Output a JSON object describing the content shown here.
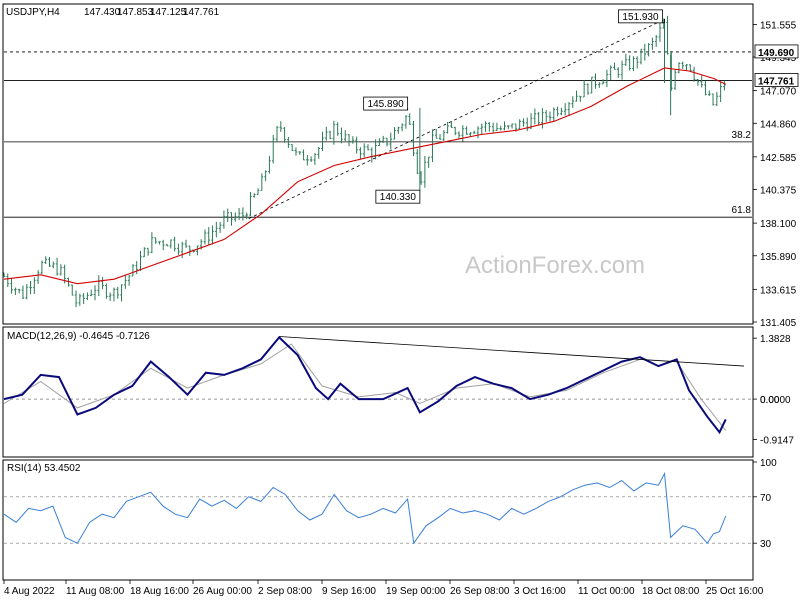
{
  "header": {
    "symbol": "USDJPY,H4",
    "ohlc": [
      "147.430",
      "147.853",
      "147.125",
      "147.761"
    ]
  },
  "watermark": "ActionForex.com",
  "colors": {
    "candle": "#2b7a57",
    "ema": "#d40000",
    "macd": "#0a0a7a",
    "signal": "#a0a0a0",
    "rsi": "#3a7fd6",
    "trend": "#000000"
  },
  "chart_data": [
    {
      "type": "candlestick",
      "panel": "price",
      "title": "USDJPY,H4",
      "ylim": [
        131.405,
        152.8
      ],
      "y_ticks": [
        "151.555",
        "149.345",
        "147.070",
        "144.860",
        "142.585",
        "140.375",
        "138.100",
        "135.890",
        "133.615",
        "131.405"
      ],
      "horizontal_levels": [
        {
          "value": 149.69,
          "style": "dashed",
          "label": "149.690"
        },
        {
          "value": 147.761,
          "style": "solid",
          "label": "147.761"
        },
        {
          "value": 143.6,
          "style": "solid",
          "label": "38.2"
        },
        {
          "value": 138.5,
          "style": "solid",
          "label": "61.8"
        }
      ],
      "annotations": [
        {
          "text": "145.890",
          "x": "14 Sep",
          "y": 145.89
        },
        {
          "text": "140.330",
          "x": "22 Sep",
          "y": 140.33
        },
        {
          "text": "151.930",
          "x": "21 Oct",
          "y": 151.93
        }
      ],
      "close_path": [
        {
          "x": 0,
          "y": 134.5
        },
        {
          "x": 3,
          "y": 133.2
        },
        {
          "x": 6,
          "y": 135.3
        },
        {
          "x": 9,
          "y": 135.0
        },
        {
          "x": 12,
          "y": 132.6
        },
        {
          "x": 15,
          "y": 133.8
        },
        {
          "x": 18,
          "y": 133.4
        },
        {
          "x": 21,
          "y": 134.8
        },
        {
          "x": 24,
          "y": 136.8
        },
        {
          "x": 27,
          "y": 136.9
        },
        {
          "x": 30,
          "y": 136.3
        },
        {
          "x": 33,
          "y": 137.1
        },
        {
          "x": 36,
          "y": 138.3
        },
        {
          "x": 39,
          "y": 138.6
        },
        {
          "x": 42,
          "y": 140.6
        },
        {
          "x": 45,
          "y": 144.8
        },
        {
          "x": 48,
          "y": 142.5
        },
        {
          "x": 51,
          "y": 142.9
        },
        {
          "x": 54,
          "y": 144.6
        },
        {
          "x": 57,
          "y": 143.3
        },
        {
          "x": 60,
          "y": 142.9
        },
        {
          "x": 63,
          "y": 143.8
        },
        {
          "x": 66,
          "y": 145.4
        },
        {
          "x": 68,
          "y": 141.0
        },
        {
          "x": 70,
          "y": 143.6
        },
        {
          "x": 73,
          "y": 144.4
        },
        {
          "x": 76,
          "y": 144.5
        },
        {
          "x": 79,
          "y": 144.7
        },
        {
          "x": 82,
          "y": 144.4
        },
        {
          "x": 85,
          "y": 144.9
        },
        {
          "x": 88,
          "y": 145.2
        },
        {
          "x": 91,
          "y": 146.0
        },
        {
          "x": 94,
          "y": 146.9
        },
        {
          "x": 97,
          "y": 147.8
        },
        {
          "x": 100,
          "y": 148.4
        },
        {
          "x": 103,
          "y": 149.0
        },
        {
          "x": 106,
          "y": 150.2
        },
        {
          "x": 108,
          "y": 151.6
        },
        {
          "x": 109,
          "y": 147.0
        },
        {
          "x": 110,
          "y": 149.2
        },
        {
          "x": 112,
          "y": 148.9
        },
        {
          "x": 114,
          "y": 147.2
        },
        {
          "x": 116,
          "y": 146.1
        },
        {
          "x": 118,
          "y": 147.761
        }
      ],
      "ema": [
        {
          "x": 0,
          "y": 134.3
        },
        {
          "x": 6,
          "y": 134.6
        },
        {
          "x": 12,
          "y": 134.0
        },
        {
          "x": 18,
          "y": 134.3
        },
        {
          "x": 24,
          "y": 135.2
        },
        {
          "x": 30,
          "y": 136.1
        },
        {
          "x": 36,
          "y": 137.0
        },
        {
          "x": 42,
          "y": 138.7
        },
        {
          "x": 48,
          "y": 140.9
        },
        {
          "x": 54,
          "y": 142.0
        },
        {
          "x": 60,
          "y": 142.6
        },
        {
          "x": 66,
          "y": 143.1
        },
        {
          "x": 72,
          "y": 143.6
        },
        {
          "x": 78,
          "y": 144.1
        },
        {
          "x": 84,
          "y": 144.4
        },
        {
          "x": 90,
          "y": 145.0
        },
        {
          "x": 96,
          "y": 146.0
        },
        {
          "x": 102,
          "y": 147.4
        },
        {
          "x": 108,
          "y": 148.6
        },
        {
          "x": 112,
          "y": 148.4
        },
        {
          "x": 116,
          "y": 147.9
        },
        {
          "x": 118,
          "y": 147.5
        }
      ],
      "trendline": [
        {
          "x": 40,
          "y": 138.4
        },
        {
          "x": 108,
          "y": 151.9
        }
      ]
    },
    {
      "type": "line",
      "panel": "macd",
      "title": "MACD(12,26,9) -0.4645 -0.7126",
      "ylim": [
        -1.2,
        1.5
      ],
      "y_ticks": [
        "1.3828",
        "0.00",
        "-0.9147"
      ],
      "zero_label": "0.0000",
      "macd": [
        {
          "x": 0,
          "y": 0.0
        },
        {
          "x": 3,
          "y": 0.1
        },
        {
          "x": 6,
          "y": 0.55
        },
        {
          "x": 9,
          "y": 0.5
        },
        {
          "x": 12,
          "y": -0.35
        },
        {
          "x": 15,
          "y": -0.2
        },
        {
          "x": 18,
          "y": 0.1
        },
        {
          "x": 21,
          "y": 0.3
        },
        {
          "x": 24,
          "y": 0.85
        },
        {
          "x": 27,
          "y": 0.5
        },
        {
          "x": 30,
          "y": 0.1
        },
        {
          "x": 33,
          "y": 0.6
        },
        {
          "x": 36,
          "y": 0.55
        },
        {
          "x": 39,
          "y": 0.7
        },
        {
          "x": 42,
          "y": 0.9
        },
        {
          "x": 45,
          "y": 1.4
        },
        {
          "x": 48,
          "y": 1.0
        },
        {
          "x": 51,
          "y": 0.25
        },
        {
          "x": 53,
          "y": 0.0
        },
        {
          "x": 55,
          "y": 0.35
        },
        {
          "x": 58,
          "y": 0.0
        },
        {
          "x": 62,
          "y": 0.0
        },
        {
          "x": 66,
          "y": 0.25
        },
        {
          "x": 68,
          "y": -0.3
        },
        {
          "x": 71,
          "y": -0.05
        },
        {
          "x": 74,
          "y": 0.3
        },
        {
          "x": 77,
          "y": 0.5
        },
        {
          "x": 80,
          "y": 0.35
        },
        {
          "x": 83,
          "y": 0.25
        },
        {
          "x": 86,
          "y": 0.0
        },
        {
          "x": 89,
          "y": 0.1
        },
        {
          "x": 92,
          "y": 0.25
        },
        {
          "x": 95,
          "y": 0.45
        },
        {
          "x": 98,
          "y": 0.65
        },
        {
          "x": 101,
          "y": 0.85
        },
        {
          "x": 104,
          "y": 0.95
        },
        {
          "x": 107,
          "y": 0.75
        },
        {
          "x": 110,
          "y": 0.9
        },
        {
          "x": 112,
          "y": 0.2
        },
        {
          "x": 115,
          "y": -0.4
        },
        {
          "x": 117,
          "y": -0.75
        },
        {
          "x": 118,
          "y": -0.46
        }
      ],
      "signal": [
        {
          "x": 0,
          "y": -0.1
        },
        {
          "x": 6,
          "y": 0.4
        },
        {
          "x": 12,
          "y": -0.2
        },
        {
          "x": 18,
          "y": 0.1
        },
        {
          "x": 24,
          "y": 0.7
        },
        {
          "x": 30,
          "y": 0.25
        },
        {
          "x": 36,
          "y": 0.55
        },
        {
          "x": 42,
          "y": 0.8
        },
        {
          "x": 47,
          "y": 1.25
        },
        {
          "x": 52,
          "y": 0.3
        },
        {
          "x": 58,
          "y": 0.05
        },
        {
          "x": 64,
          "y": 0.15
        },
        {
          "x": 68,
          "y": -0.1
        },
        {
          "x": 74,
          "y": 0.25
        },
        {
          "x": 80,
          "y": 0.35
        },
        {
          "x": 86,
          "y": 0.05
        },
        {
          "x": 92,
          "y": 0.2
        },
        {
          "x": 98,
          "y": 0.6
        },
        {
          "x": 104,
          "y": 0.9
        },
        {
          "x": 110,
          "y": 0.85
        },
        {
          "x": 114,
          "y": 0.0
        },
        {
          "x": 118,
          "y": -0.71
        }
      ],
      "trendline": [
        {
          "x": 45,
          "y": 1.42
        },
        {
          "x": 121,
          "y": 0.75
        }
      ]
    },
    {
      "type": "line",
      "panel": "rsi",
      "title": "RSI(14) 53.4502",
      "ylim": [
        0,
        100
      ],
      "y_ticks": [
        "100",
        "70",
        "30"
      ],
      "rsi": [
        {
          "x": 0,
          "y": 55
        },
        {
          "x": 2,
          "y": 48
        },
        {
          "x": 4,
          "y": 60
        },
        {
          "x": 6,
          "y": 58
        },
        {
          "x": 8,
          "y": 62
        },
        {
          "x": 10,
          "y": 35
        },
        {
          "x": 12,
          "y": 30
        },
        {
          "x": 14,
          "y": 48
        },
        {
          "x": 16,
          "y": 55
        },
        {
          "x": 18,
          "y": 52
        },
        {
          "x": 20,
          "y": 66
        },
        {
          "x": 22,
          "y": 70
        },
        {
          "x": 24,
          "y": 74
        },
        {
          "x": 26,
          "y": 62
        },
        {
          "x": 28,
          "y": 55
        },
        {
          "x": 30,
          "y": 52
        },
        {
          "x": 32,
          "y": 68
        },
        {
          "x": 34,
          "y": 62
        },
        {
          "x": 36,
          "y": 67
        },
        {
          "x": 38,
          "y": 60
        },
        {
          "x": 40,
          "y": 70
        },
        {
          "x": 42,
          "y": 66
        },
        {
          "x": 44,
          "y": 78
        },
        {
          "x": 46,
          "y": 72
        },
        {
          "x": 48,
          "y": 58
        },
        {
          "x": 50,
          "y": 50
        },
        {
          "x": 52,
          "y": 55
        },
        {
          "x": 54,
          "y": 72
        },
        {
          "x": 56,
          "y": 58
        },
        {
          "x": 58,
          "y": 52
        },
        {
          "x": 60,
          "y": 55
        },
        {
          "x": 62,
          "y": 60
        },
        {
          "x": 64,
          "y": 56
        },
        {
          "x": 66,
          "y": 68
        },
        {
          "x": 67,
          "y": 30
        },
        {
          "x": 69,
          "y": 45
        },
        {
          "x": 71,
          "y": 52
        },
        {
          "x": 73,
          "y": 60
        },
        {
          "x": 75,
          "y": 56
        },
        {
          "x": 77,
          "y": 58
        },
        {
          "x": 79,
          "y": 55
        },
        {
          "x": 81,
          "y": 50
        },
        {
          "x": 83,
          "y": 60
        },
        {
          "x": 85,
          "y": 55
        },
        {
          "x": 87,
          "y": 60
        },
        {
          "x": 89,
          "y": 66
        },
        {
          "x": 91,
          "y": 70
        },
        {
          "x": 93,
          "y": 76
        },
        {
          "x": 95,
          "y": 80
        },
        {
          "x": 97,
          "y": 82
        },
        {
          "x": 99,
          "y": 78
        },
        {
          "x": 101,
          "y": 84
        },
        {
          "x": 103,
          "y": 75
        },
        {
          "x": 105,
          "y": 82
        },
        {
          "x": 107,
          "y": 80
        },
        {
          "x": 108,
          "y": 90
        },
        {
          "x": 109,
          "y": 35
        },
        {
          "x": 111,
          "y": 45
        },
        {
          "x": 113,
          "y": 42
        },
        {
          "x": 115,
          "y": 30
        },
        {
          "x": 116,
          "y": 38
        },
        {
          "x": 117,
          "y": 40
        },
        {
          "x": 118,
          "y": 53.45
        }
      ]
    }
  ],
  "x_labels": [
    "4 Aug 2022",
    "11 Aug 08:00",
    "18 Aug 16:00",
    "26 Aug 00:00",
    "2 Sep 08:00",
    "9 Sep 16:00",
    "19 Sep 00:00",
    "26 Sep 08:00",
    "3 Oct 16:00",
    "11 Oct 00:00",
    "18 Oct 08:00",
    "25 Oct 16:00"
  ]
}
